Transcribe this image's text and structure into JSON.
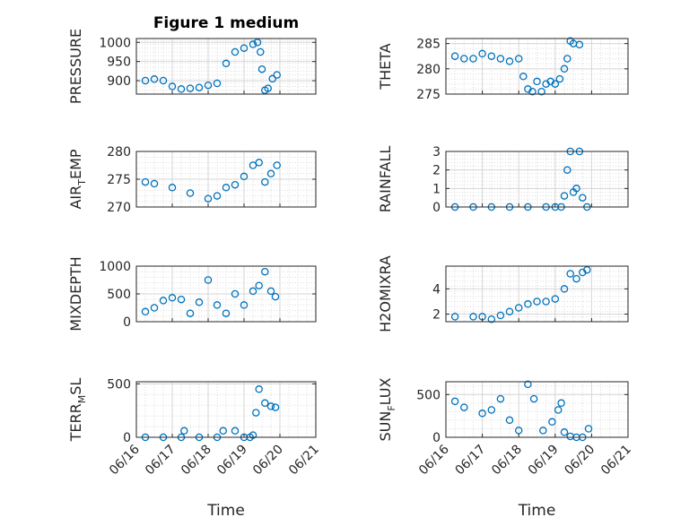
{
  "figure": {
    "title": "Figure 1 medium",
    "xlabel": "Time",
    "date_ticks": [
      "06/16",
      "06/17",
      "06/18",
      "06/19",
      "06/20",
      "06/21"
    ],
    "marker_color": "#0072BD"
  },
  "chart_data": [
    {
      "id": "pressure",
      "type": "scatter",
      "title": "Figure 1 medium",
      "xlabel": "",
      "ylabel": "PRESSURE",
      "ylim": [
        865,
        1010
      ],
      "yticks": [
        900,
        950,
        1000
      ],
      "grid": true,
      "x": [
        "06/16 06:00",
        "06/16 12:00",
        "06/16 18:00",
        "06/17 00:00",
        "06/17 06:00",
        "06/17 12:00",
        "06/17 18:00",
        "06/18 00:00",
        "06/18 06:00",
        "06/18 12:00",
        "06/18 18:00",
        "06/19 00:00",
        "06/19 06:00",
        "06/19 09:00",
        "06/19 11:00",
        "06/19 12:00",
        "06/19 14:00",
        "06/19 16:00",
        "06/19 19:00",
        "06/19 22:00"
      ],
      "values": [
        900,
        904,
        900,
        885,
        878,
        880,
        882,
        888,
        893,
        945,
        975,
        985,
        995,
        1000,
        975,
        930,
        875,
        880,
        905,
        915
      ]
    },
    {
      "id": "theta",
      "type": "scatter",
      "xlabel": "",
      "ylabel": "THETA",
      "ylim": [
        275,
        286
      ],
      "yticks": [
        275,
        280,
        285
      ],
      "grid": true,
      "x": [
        "06/16 06:00",
        "06/16 12:00",
        "06/16 18:00",
        "06/17 00:00",
        "06/17 06:00",
        "06/17 12:00",
        "06/17 18:00",
        "06/18 00:00",
        "06/18 03:00",
        "06/18 06:00",
        "06/18 09:00",
        "06/18 12:00",
        "06/18 15:00",
        "06/18 18:00",
        "06/18 21:00",
        "06/19 00:00",
        "06/19 03:00",
        "06/19 06:00",
        "06/19 08:00",
        "06/19 10:00",
        "06/19 12:00",
        "06/19 16:00"
      ],
      "values": [
        282.5,
        282,
        282,
        283,
        282.5,
        282,
        281.5,
        282,
        278.5,
        276,
        275.5,
        277.5,
        275.5,
        277,
        277.5,
        277,
        278,
        280,
        282,
        285.5,
        285,
        284.8
      ]
    },
    {
      "id": "air_temp",
      "type": "scatter",
      "xlabel": "",
      "ylabel": "AIR_TEMP",
      "ylim": [
        270,
        280
      ],
      "yticks": [
        270,
        275,
        280
      ],
      "grid": true,
      "x": [
        "06/16 06:00",
        "06/16 12:00",
        "06/17 00:00",
        "06/17 12:00",
        "06/18 00:00",
        "06/18 06:00",
        "06/18 12:00",
        "06/18 18:00",
        "06/19 00:00",
        "06/19 06:00",
        "06/19 10:00",
        "06/19 14:00",
        "06/19 18:00",
        "06/19 22:00"
      ],
      "values": [
        274.5,
        274.2,
        273.5,
        272.5,
        271.5,
        272,
        273.5,
        274,
        275.5,
        277.5,
        278,
        274.5,
        276,
        277.5
      ]
    },
    {
      "id": "rainfall",
      "type": "scatter",
      "xlabel": "",
      "ylabel": "RAINFALL",
      "ylim": [
        0,
        3
      ],
      "yticks": [
        0,
        1,
        2,
        3
      ],
      "grid": true,
      "x": [
        "06/16 06:00",
        "06/16 18:00",
        "06/17 06:00",
        "06/17 18:00",
        "06/18 06:00",
        "06/18 18:00",
        "06/19 00:00",
        "06/19 04:00",
        "06/19 06:00",
        "06/19 08:00",
        "06/19 10:00",
        "06/19 12:00",
        "06/19 14:00",
        "06/19 16:00",
        "06/19 18:00",
        "06/19 21:00"
      ],
      "values": [
        0,
        0,
        0,
        0,
        0,
        0,
        0,
        0,
        0.6,
        2.0,
        3.0,
        0.8,
        1.0,
        3.0,
        0.5,
        0
      ]
    },
    {
      "id": "mixdepth",
      "type": "scatter",
      "xlabel": "",
      "ylabel": "MIXDEPTH",
      "ylim": [
        0,
        1000
      ],
      "yticks": [
        0,
        500,
        1000
      ],
      "grid": true,
      "x": [
        "06/16 06:00",
        "06/16 12:00",
        "06/16 18:00",
        "06/17 00:00",
        "06/17 06:00",
        "06/17 12:00",
        "06/17 18:00",
        "06/18 00:00",
        "06/18 06:00",
        "06/18 12:00",
        "06/18 18:00",
        "06/19 00:00",
        "06/19 06:00",
        "06/19 10:00",
        "06/19 14:00",
        "06/19 18:00",
        "06/19 21:00"
      ],
      "values": [
        180,
        250,
        380,
        430,
        400,
        150,
        350,
        750,
        300,
        150,
        500,
        300,
        550,
        650,
        900,
        550,
        450
      ]
    },
    {
      "id": "h2omixra",
      "type": "scatter",
      "xlabel": "",
      "ylabel": "H2OMIXRA",
      "ylim": [
        1.4,
        5.8
      ],
      "yticks": [
        2,
        4
      ],
      "grid": true,
      "x": [
        "06/16 06:00",
        "06/16 18:00",
        "06/17 00:00",
        "06/17 06:00",
        "06/17 12:00",
        "06/17 18:00",
        "06/18 00:00",
        "06/18 06:00",
        "06/18 12:00",
        "06/18 18:00",
        "06/19 00:00",
        "06/19 06:00",
        "06/19 10:00",
        "06/19 14:00",
        "06/19 18:00",
        "06/19 21:00"
      ],
      "values": [
        1.8,
        1.8,
        1.8,
        1.6,
        1.9,
        2.2,
        2.5,
        2.8,
        3.0,
        3.0,
        3.2,
        4.0,
        5.2,
        4.8,
        5.3,
        5.5
      ]
    },
    {
      "id": "terr_msl",
      "type": "scatter",
      "xlabel": "Time",
      "ylabel": "TERR_MSL",
      "ylim": [
        0,
        520
      ],
      "yticks": [
        0,
        500
      ],
      "grid": true,
      "x": [
        "06/16 06:00",
        "06/16 18:00",
        "06/17 06:00",
        "06/17 08:00",
        "06/17 18:00",
        "06/18 06:00",
        "06/18 10:00",
        "06/18 18:00",
        "06/19 00:00",
        "06/19 04:00",
        "06/19 06:00",
        "06/19 08:00",
        "06/19 10:00",
        "06/19 14:00",
        "06/19 18:00",
        "06/19 21:00"
      ],
      "values": [
        0,
        0,
        0,
        60,
        0,
        0,
        60,
        60,
        0,
        0,
        20,
        230,
        450,
        320,
        290,
        280
      ]
    },
    {
      "id": "sun_flux",
      "type": "scatter",
      "xlabel": "Time",
      "ylabel": "SUN_FLUX",
      "ylim": [
        0,
        650
      ],
      "yticks": [
        0,
        500
      ],
      "grid": true,
      "x": [
        "06/16 06:00",
        "06/16 12:00",
        "06/17 00:00",
        "06/17 06:00",
        "06/17 12:00",
        "06/17 18:00",
        "06/18 00:00",
        "06/18 06:00",
        "06/18 10:00",
        "06/18 16:00",
        "06/18 22:00",
        "06/19 02:00",
        "06/19 04:00",
        "06/19 06:00",
        "06/19 10:00",
        "06/19 14:00",
        "06/19 18:00",
        "06/19 22:00"
      ],
      "values": [
        420,
        350,
        280,
        320,
        450,
        200,
        80,
        620,
        450,
        80,
        180,
        320,
        400,
        60,
        10,
        0,
        0,
        100
      ]
    }
  ]
}
